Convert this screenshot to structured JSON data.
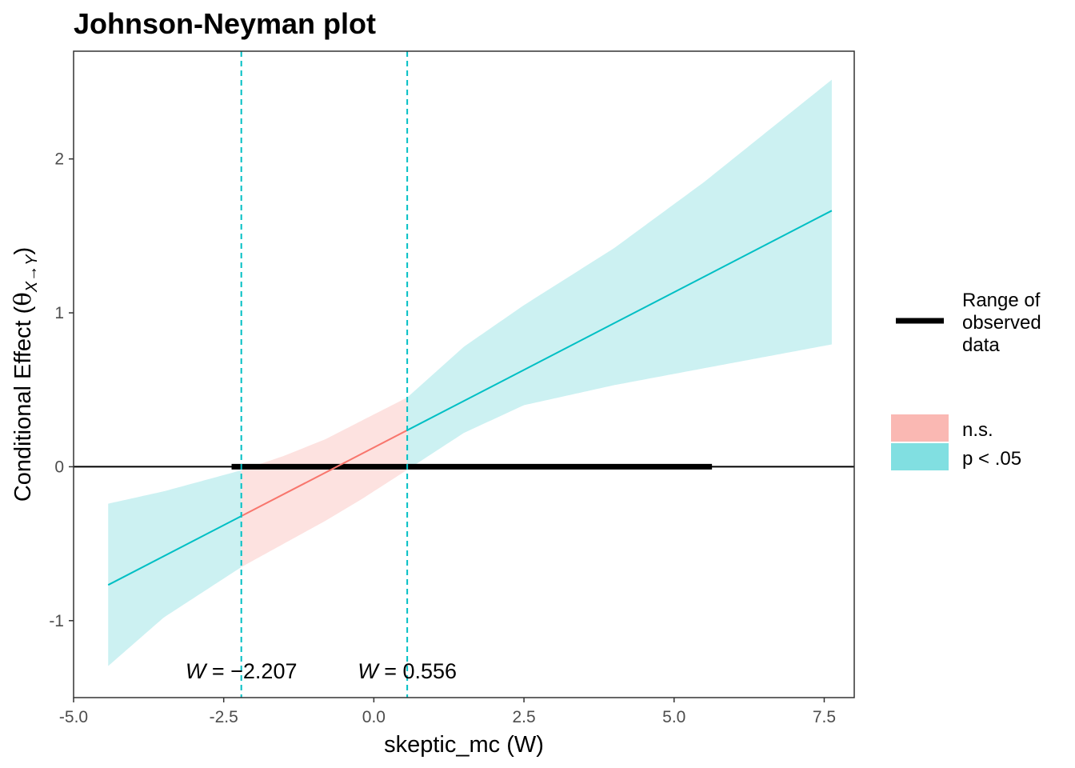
{
  "chart_data": {
    "type": "line",
    "title": "Johnson-Neyman plot",
    "xlabel": "skeptic_mc (W)",
    "ylabel": {
      "main": "Conditional Effect (",
      "theta": "θ",
      "subscript": "X→Y",
      "close": ")"
    },
    "xlim": [
      -5.0,
      8.0
    ],
    "ylim": [
      -1.5,
      2.7
    ],
    "x_ticks": [
      -5.0,
      -2.5,
      0.0,
      2.5,
      5.0,
      7.5
    ],
    "x_tick_labels": [
      "-5.0",
      "-2.5",
      "0.0",
      "2.5",
      "5.0",
      "7.5"
    ],
    "y_ticks": [
      -1,
      0,
      1,
      2
    ],
    "y_tick_labels": [
      "-1",
      "0",
      "1",
      "2"
    ],
    "grid": false,
    "legend_position": "right",
    "effect_line": {
      "x": [
        -4.424,
        7.626
      ],
      "y": [
        -0.768,
        1.664
      ]
    },
    "confidence_band": {
      "x": [
        -4.424,
        -3.5,
        -2.207,
        -1.5,
        -0.8,
        -0.2,
        0.556,
        1.5,
        2.5,
        4.0,
        5.5,
        7.626
      ],
      "lower": [
        -1.295,
        -0.98,
        -0.652,
        -0.5,
        -0.35,
        -0.21,
        -0.02,
        0.22,
        0.4,
        0.53,
        0.64,
        0.795
      ],
      "upper": [
        -0.24,
        -0.16,
        -0.023,
        0.07,
        0.18,
        0.3,
        0.45,
        0.78,
        1.05,
        1.42,
        1.85,
        2.515
      ]
    },
    "johnson_neyman_points": [
      {
        "value": -2.207,
        "label_prefix": "W",
        "label_eq": " = ",
        "label_value": "−2.207"
      },
      {
        "value": 0.556,
        "label_prefix": "W",
        "label_eq": " = ",
        "label_value": "0.556"
      }
    ],
    "observed_range": [
      -2.369,
      5.631
    ],
    "reference_line_y": 0,
    "legend": {
      "range_label": [
        "Range of",
        "observed",
        "data"
      ],
      "significance": [
        {
          "label": "n.s.",
          "color": "#F8766D",
          "fill": "#FAB8B3"
        },
        {
          "label": "p < .05",
          "color": "#00BFC4",
          "fill": "#81DFE1"
        }
      ]
    },
    "colors": {
      "significant": "#00BFC4",
      "not_significant": "#F8766D",
      "band_significant": "#CCF1F2",
      "band_not_significant": "#FDE2E0",
      "observed_range": "#000000"
    }
  }
}
